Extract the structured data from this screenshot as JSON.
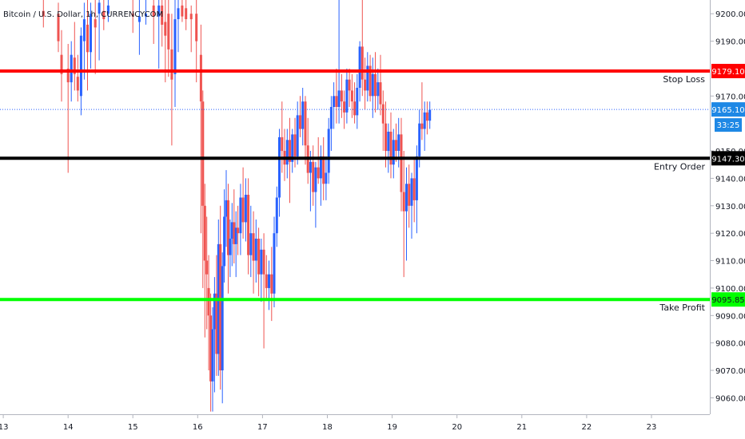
{
  "header": {
    "symbol": "Bitcoin / U.S. Dollar, 1h, CURRENCYCOM"
  },
  "colors": {
    "up": "#2962ff",
    "down": "#ef5350",
    "stop_loss": "#ff0000",
    "entry": "#000000",
    "take_profit": "#00ff00",
    "current_price": "#2962ff",
    "timer_bg": "#1e88e5"
  },
  "chart_data": {
    "type": "candlestick",
    "x_ticks": [
      "13",
      "14",
      "15",
      "16",
      "17",
      "18",
      "19",
      "20",
      "21",
      "22",
      "23"
    ],
    "y_ticks": [
      "9060.00",
      "9070.00",
      "9080.00",
      "9090.00",
      "9100.00",
      "9110.00",
      "9120.00",
      "9130.00",
      "9140.00",
      "9150.00",
      "9160.00",
      "9170.00",
      "9180.00",
      "9190.00",
      "9200.00"
    ],
    "ylim": [
      9054,
      9205
    ],
    "xlim": [
      12.95,
      23.9
    ],
    "grid": false,
    "levels": [
      {
        "name": "Stop Loss",
        "price": 9179.1,
        "tag": "9179.10",
        "color_key": "stop_loss",
        "tag_text_color": "#ffffff"
      },
      {
        "name": "Entry Order",
        "price": 9147.3,
        "tag": "9147.30",
        "color_key": "entry",
        "tag_text_color": "#ffffff"
      },
      {
        "name": "Take Profit",
        "price": 9095.85,
        "tag": "9095.85",
        "color_key": "take_profit",
        "tag_text_color": "#131722"
      }
    ],
    "current_price": {
      "price": 9165.1,
      "tag": "9165.10",
      "countdown": "33:25"
    },
    "candles": [
      [
        13.62,
        9201,
        9206,
        9195,
        9199
      ],
      [
        13.85,
        9200,
        9204,
        9186,
        9190
      ],
      [
        13.9,
        9185,
        9194,
        9168,
        9178
      ],
      [
        14.0,
        9180,
        9189,
        9142,
        9175
      ],
      [
        14.05,
        9175,
        9190,
        9168,
        9185
      ],
      [
        14.1,
        9184,
        9197,
        9172,
        9178
      ],
      [
        14.15,
        9177,
        9185,
        9168,
        9172
      ],
      [
        14.2,
        9170,
        9195,
        9163,
        9192
      ],
      [
        14.25,
        9190,
        9204,
        9176,
        9198
      ],
      [
        14.3,
        9196,
        9206,
        9172,
        9186
      ],
      [
        14.35,
        9186,
        9204,
        9180,
        9200
      ],
      [
        14.42,
        9198,
        9206,
        9178,
        9195
      ],
      [
        14.48,
        9200,
        9207,
        9183,
        9204
      ],
      [
        14.55,
        9201,
        9206,
        9194,
        9198
      ],
      [
        14.62,
        9200,
        9206,
        9197,
        9203
      ],
      [
        15.0,
        9200,
        9206,
        9193,
        9199
      ],
      [
        15.1,
        9197,
        9206,
        9185,
        9199
      ],
      [
        15.2,
        9199,
        9206,
        9196,
        9200
      ],
      [
        15.32,
        9203,
        9207,
        9189,
        9199
      ],
      [
        15.4,
        9199,
        9207,
        9180,
        9203
      ],
      [
        15.45,
        9203,
        9207,
        9188,
        9196
      ],
      [
        15.5,
        9197,
        9207,
        9175,
        9192
      ],
      [
        15.55,
        9200,
        9207,
        9177,
        9187
      ],
      [
        15.6,
        9187,
        9200,
        9152,
        9176
      ],
      [
        15.65,
        9178,
        9205,
        9166,
        9198
      ],
      [
        15.7,
        9198,
        9207,
        9186,
        9202
      ],
      [
        15.76,
        9203,
        9207,
        9197,
        9199
      ],
      [
        15.82,
        9202,
        9207,
        9194,
        9198
      ],
      [
        15.9,
        9200,
        9203,
        9186,
        9198
      ],
      [
        15.98,
        9200,
        9206,
        9175,
        9190
      ],
      [
        16.05,
        9185,
        9196,
        9120,
        9168
      ],
      [
        16.08,
        9168,
        9172,
        9100,
        9130
      ],
      [
        16.11,
        9130,
        9138,
        9082,
        9110
      ],
      [
        16.14,
        9110,
        9126,
        9085,
        9105
      ],
      [
        16.17,
        9100,
        9112,
        9070,
        9090
      ],
      [
        16.2,
        9090,
        9098,
        9055,
        9066
      ],
      [
        16.23,
        9066,
        9093,
        9055,
        9085
      ],
      [
        16.26,
        9085,
        9104,
        9062,
        9098
      ],
      [
        16.29,
        9098,
        9112,
        9068,
        9076
      ],
      [
        16.32,
        9076,
        9125,
        9068,
        9116
      ],
      [
        16.35,
        9116,
        9130,
        9063,
        9070
      ],
      [
        16.38,
        9070,
        9113,
        9058,
        9108
      ],
      [
        16.41,
        9108,
        9136,
        9102,
        9126
      ],
      [
        16.44,
        9126,
        9143,
        9115,
        9132
      ],
      [
        16.47,
        9132,
        9138,
        9098,
        9112
      ],
      [
        16.5,
        9112,
        9125,
        9104,
        9118
      ],
      [
        16.53,
        9118,
        9131,
        9108,
        9124
      ],
      [
        16.56,
        9124,
        9136,
        9109,
        9116
      ],
      [
        16.59,
        9116,
        9128,
        9104,
        9122
      ],
      [
        16.62,
        9122,
        9130,
        9112,
        9120
      ],
      [
        16.66,
        9120,
        9138,
        9112,
        9133
      ],
      [
        16.7,
        9133,
        9144,
        9118,
        9124
      ],
      [
        16.74,
        9124,
        9140,
        9117,
        9134
      ],
      [
        16.78,
        9134,
        9140,
        9105,
        9112
      ],
      [
        16.82,
        9112,
        9130,
        9104,
        9120
      ],
      [
        16.86,
        9120,
        9128,
        9098,
        9110
      ],
      [
        16.9,
        9110,
        9125,
        9102,
        9118
      ],
      [
        16.94,
        9118,
        9122,
        9097,
        9105
      ],
      [
        16.98,
        9105,
        9118,
        9095,
        9114
      ],
      [
        17.02,
        9114,
        9120,
        9078,
        9105
      ],
      [
        17.06,
        9105,
        9112,
        9096,
        9100
      ],
      [
        17.1,
        9100,
        9110,
        9092,
        9105
      ],
      [
        17.14,
        9105,
        9115,
        9088,
        9098
      ],
      [
        17.18,
        9098,
        9126,
        9093,
        9120
      ],
      [
        17.22,
        9120,
        9137,
        9115,
        9133
      ],
      [
        17.26,
        9133,
        9158,
        9126,
        9155
      ],
      [
        17.3,
        9155,
        9168,
        9142,
        9150
      ],
      [
        17.34,
        9150,
        9158,
        9139,
        9145
      ],
      [
        17.38,
        9145,
        9158,
        9140,
        9154
      ],
      [
        17.42,
        9154,
        9162,
        9131,
        9146
      ],
      [
        17.46,
        9146,
        9158,
        9142,
        9156
      ],
      [
        17.5,
        9156,
        9162,
        9144,
        9148
      ],
      [
        17.54,
        9148,
        9168,
        9145,
        9163
      ],
      [
        17.58,
        9163,
        9170,
        9155,
        9158
      ],
      [
        17.62,
        9158,
        9173,
        9152,
        9168
      ],
      [
        17.66,
        9168,
        9170,
        9145,
        9152
      ],
      [
        17.7,
        9152,
        9162,
        9138,
        9142
      ],
      [
        17.74,
        9142,
        9150,
        9128,
        9146
      ],
      [
        17.78,
        9146,
        9152,
        9130,
        9135
      ],
      [
        17.82,
        9135,
        9146,
        9122,
        9144
      ],
      [
        17.86,
        9144,
        9155,
        9138,
        9140
      ],
      [
        17.9,
        9140,
        9152,
        9130,
        9148
      ],
      [
        17.94,
        9148,
        9155,
        9132,
        9138
      ],
      [
        17.98,
        9138,
        9148,
        9132,
        9142
      ],
      [
        18.02,
        9142,
        9162,
        9138,
        9158
      ],
      [
        18.06,
        9158,
        9170,
        9150,
        9166
      ],
      [
        18.1,
        9166,
        9175,
        9158,
        9170
      ],
      [
        18.14,
        9170,
        9180,
        9160,
        9166
      ],
      [
        18.18,
        9166,
        9208,
        9160,
        9172
      ],
      [
        18.22,
        9172,
        9178,
        9162,
        9168
      ],
      [
        18.26,
        9168,
        9172,
        9158,
        9164
      ],
      [
        18.3,
        9164,
        9180,
        9160,
        9176
      ],
      [
        18.34,
        9176,
        9180,
        9166,
        9172
      ],
      [
        18.38,
        9172,
        9178,
        9162,
        9168
      ],
      [
        18.42,
        9168,
        9175,
        9160,
        9163
      ],
      [
        18.46,
        9163,
        9178,
        9158,
        9173
      ],
      [
        18.5,
        9173,
        9190,
        9168,
        9188
      ],
      [
        18.54,
        9188,
        9210,
        9170,
        9176
      ],
      [
        18.58,
        9176,
        9184,
        9165,
        9172
      ],
      [
        18.62,
        9172,
        9186,
        9168,
        9181
      ],
      [
        18.66,
        9181,
        9185,
        9168,
        9170
      ],
      [
        18.7,
        9170,
        9184,
        9162,
        9178
      ],
      [
        18.74,
        9178,
        9186,
        9164,
        9170
      ],
      [
        18.78,
        9170,
        9180,
        9165,
        9175
      ],
      [
        18.82,
        9175,
        9185,
        9163,
        9167
      ],
      [
        18.86,
        9167,
        9172,
        9150,
        9160
      ],
      [
        18.9,
        9160,
        9168,
        9144,
        9150
      ],
      [
        18.94,
        9150,
        9160,
        9142,
        9157
      ],
      [
        18.98,
        9157,
        9164,
        9140,
        9145
      ],
      [
        19.02,
        9145,
        9158,
        9140,
        9154
      ],
      [
        19.06,
        9154,
        9160,
        9146,
        9150
      ],
      [
        19.1,
        9150,
        9162,
        9144,
        9156
      ],
      [
        19.14,
        9156,
        9162,
        9128,
        9135
      ],
      [
        19.18,
        9135,
        9150,
        9104,
        9128
      ],
      [
        19.22,
        9128,
        9144,
        9110,
        9138
      ],
      [
        19.26,
        9138,
        9145,
        9122,
        9130
      ],
      [
        19.3,
        9130,
        9142,
        9118,
        9140
      ],
      [
        19.34,
        9140,
        9147,
        9124,
        9132
      ],
      [
        19.38,
        9132,
        9152,
        9120,
        9148
      ],
      [
        19.42,
        9148,
        9165,
        9144,
        9160
      ],
      [
        19.46,
        9160,
        9175,
        9154,
        9158
      ],
      [
        19.5,
        9158,
        9168,
        9150,
        9164
      ],
      [
        19.54,
        9164,
        9168,
        9156,
        9161
      ],
      [
        19.58,
        9161,
        9168,
        9158,
        9165
      ]
    ]
  }
}
